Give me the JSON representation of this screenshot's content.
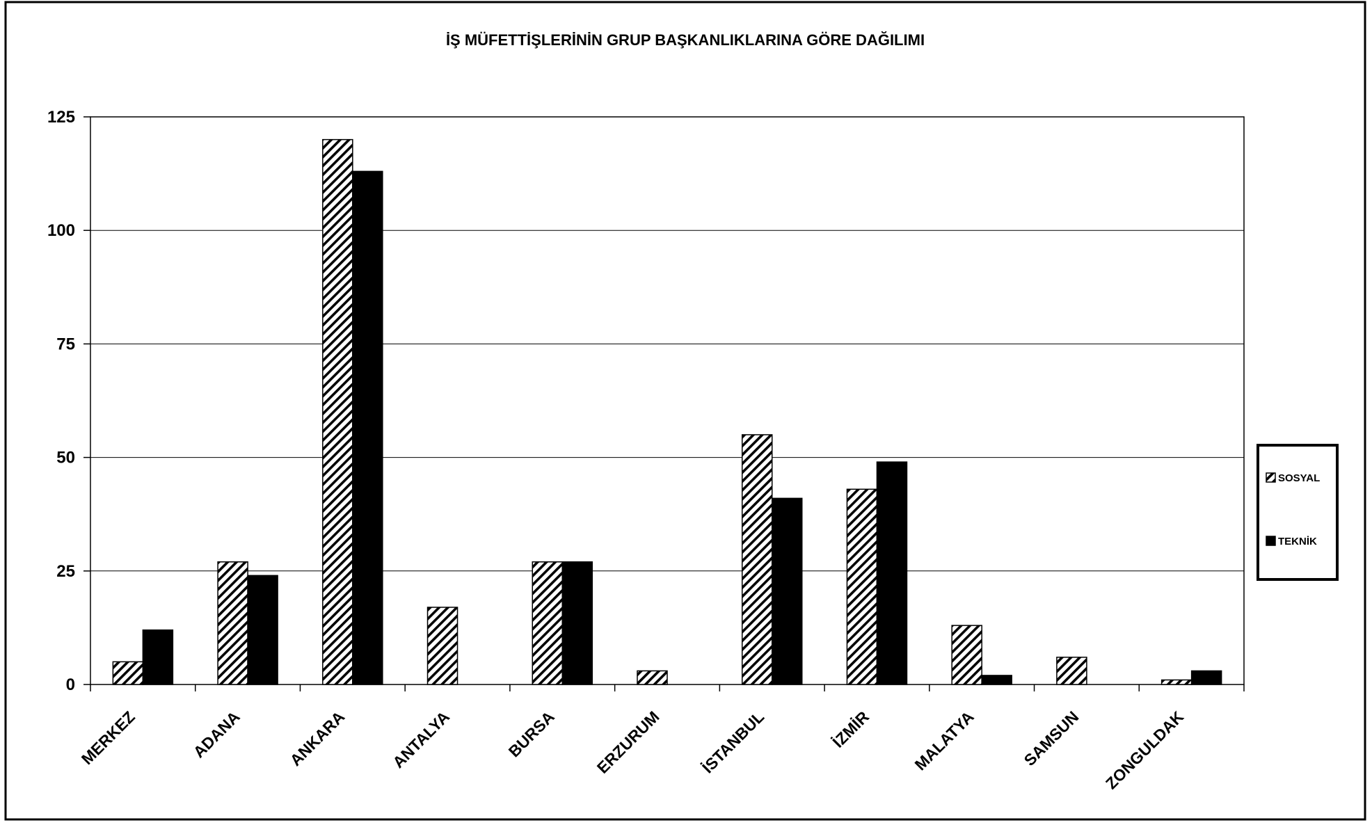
{
  "chart_data": {
    "type": "bar",
    "title": "İŞ MÜFETTİŞLERİNİN GRUP BAŞKANLIKLARINA GÖRE DAĞILIMI",
    "xlabel": "",
    "ylabel": "",
    "ylim": [
      0,
      125
    ],
    "yticks": [
      "0",
      "25",
      "50",
      "75",
      "100",
      "125"
    ],
    "ytick_values": [
      0,
      25,
      50,
      75,
      100,
      125
    ],
    "grid": true,
    "legend_position": "right",
    "categories": [
      "MERKEZ",
      "ADANA",
      "ANKARA",
      "ANTALYA",
      "BURSA",
      "ERZURUM",
      "İSTANBUL",
      "İZMİR",
      "MALATYA",
      "SAMSUN",
      "ZONGULDAK"
    ],
    "series": [
      {
        "name": "SOSYAL",
        "pattern": "diagonal-hatch",
        "color": "#000000",
        "values": [
          5,
          27,
          120,
          17,
          27,
          3,
          55,
          43,
          13,
          6,
          1
        ]
      },
      {
        "name": "TEKNİK",
        "pattern": "solid",
        "color": "#000000",
        "values": [
          12,
          24,
          113,
          0,
          27,
          0,
          41,
          49,
          2,
          0,
          3
        ]
      }
    ]
  }
}
